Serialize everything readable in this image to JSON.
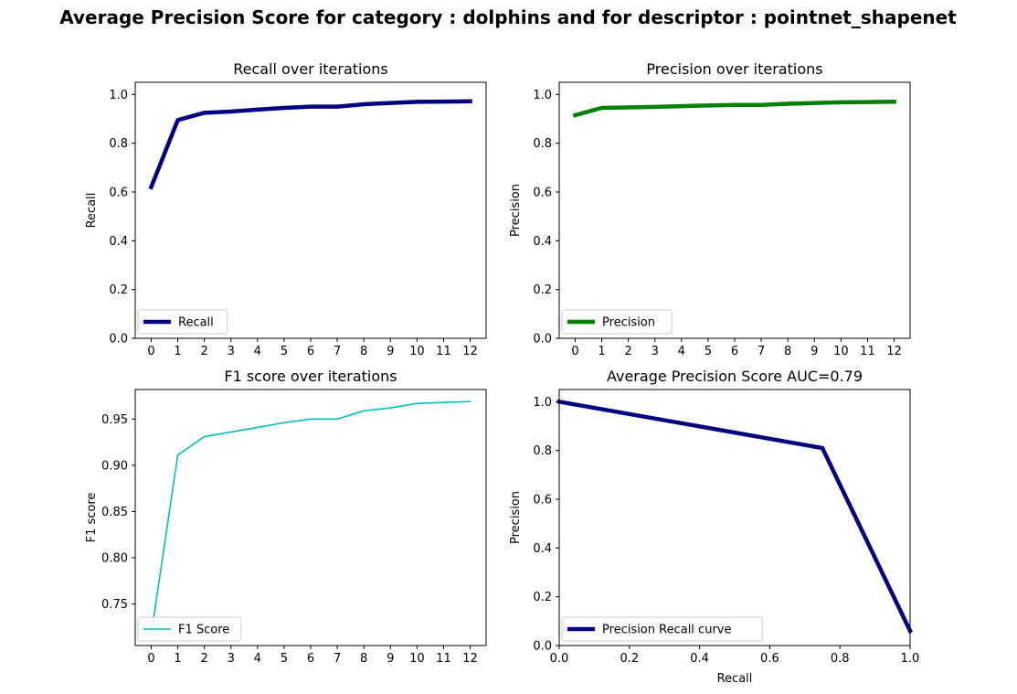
{
  "figure": {
    "suptitle": "Average Precision Score for category : dolphins and for descriptor : pointnet_shapenet"
  },
  "chart_data": [
    {
      "type": "line",
      "title": "Recall over iterations",
      "xlabel": "",
      "ylabel": "Recall",
      "x": [
        0,
        1,
        2,
        3,
        4,
        5,
        6,
        7,
        8,
        9,
        10,
        11,
        12
      ],
      "xticks": [
        "0",
        "1",
        "2",
        "3",
        "4",
        "5",
        "6",
        "7",
        "8",
        "9",
        "10",
        "11",
        "12"
      ],
      "xlim": [
        -0.6,
        12.6
      ],
      "ylim": [
        0.0,
        1.05
      ],
      "yticks": [
        "0.0",
        "0.2",
        "0.4",
        "0.6",
        "0.8",
        "1.0"
      ],
      "series": [
        {
          "name": "Recall",
          "color": "#000080",
          "line_width": "thick",
          "values": [
            0.62,
            0.895,
            0.925,
            0.93,
            0.938,
            0.945,
            0.95,
            0.95,
            0.96,
            0.965,
            0.97,
            0.971,
            0.972
          ]
        }
      ],
      "legend": "lower left"
    },
    {
      "type": "line",
      "title": "Precision over iterations",
      "xlabel": "",
      "ylabel": "Precision",
      "x": [
        0,
        1,
        2,
        3,
        4,
        5,
        6,
        7,
        8,
        9,
        10,
        11,
        12
      ],
      "xticks": [
        "0",
        "1",
        "2",
        "3",
        "4",
        "5",
        "6",
        "7",
        "8",
        "9",
        "10",
        "11",
        "12"
      ],
      "xlim": [
        -0.6,
        12.6
      ],
      "ylim": [
        0.0,
        1.05
      ],
      "yticks": [
        "0.0",
        "0.2",
        "0.4",
        "0.6",
        "0.8",
        "1.0"
      ],
      "series": [
        {
          "name": "Precision",
          "color": "#008000",
          "line_width": "thick",
          "values": [
            0.915,
            0.945,
            0.947,
            0.949,
            0.952,
            0.955,
            0.957,
            0.957,
            0.962,
            0.965,
            0.968,
            0.969,
            0.97
          ]
        }
      ],
      "legend": "lower left"
    },
    {
      "type": "line",
      "title": "F1 score over iterations",
      "xlabel": "",
      "ylabel": "F1 score",
      "x": [
        0,
        1,
        2,
        3,
        4,
        5,
        6,
        7,
        8,
        9,
        10,
        11,
        12
      ],
      "xticks": [
        "0",
        "1",
        "2",
        "3",
        "4",
        "5",
        "6",
        "7",
        "8",
        "9",
        "10",
        "11",
        "12"
      ],
      "xlim": [
        -0.6,
        12.6
      ],
      "ylim": [
        0.705,
        0.982
      ],
      "yticks": [
        "0.75",
        "0.80",
        "0.85",
        "0.90",
        "0.95"
      ],
      "series": [
        {
          "name": "F1 Score",
          "color": "#00BFBF",
          "line_width": "thin",
          "values": [
            0.717,
            0.911,
            0.931,
            0.936,
            0.941,
            0.946,
            0.95,
            0.95,
            0.959,
            0.962,
            0.967,
            0.968,
            0.969
          ]
        }
      ],
      "legend": "lower left"
    },
    {
      "type": "line",
      "title": "Average Precision Score AUC=0.79",
      "xlabel": "Recall",
      "ylabel": "Precision",
      "x": [
        0.0,
        0.75,
        1.0
      ],
      "xticks": [
        "0.0",
        "0.2",
        "0.4",
        "0.6",
        "0.8",
        "1.0"
      ],
      "xlim": [
        0.0,
        1.0
      ],
      "ylim": [
        0.0,
        1.05
      ],
      "yticks": [
        "0.0",
        "0.2",
        "0.4",
        "0.6",
        "0.8",
        "1.0"
      ],
      "series": [
        {
          "name": "Precision Recall curve",
          "color": "#000080",
          "line_width": "thick",
          "values": [
            1.0,
            0.81,
            0.06
          ]
        }
      ],
      "legend": "lower left"
    }
  ]
}
